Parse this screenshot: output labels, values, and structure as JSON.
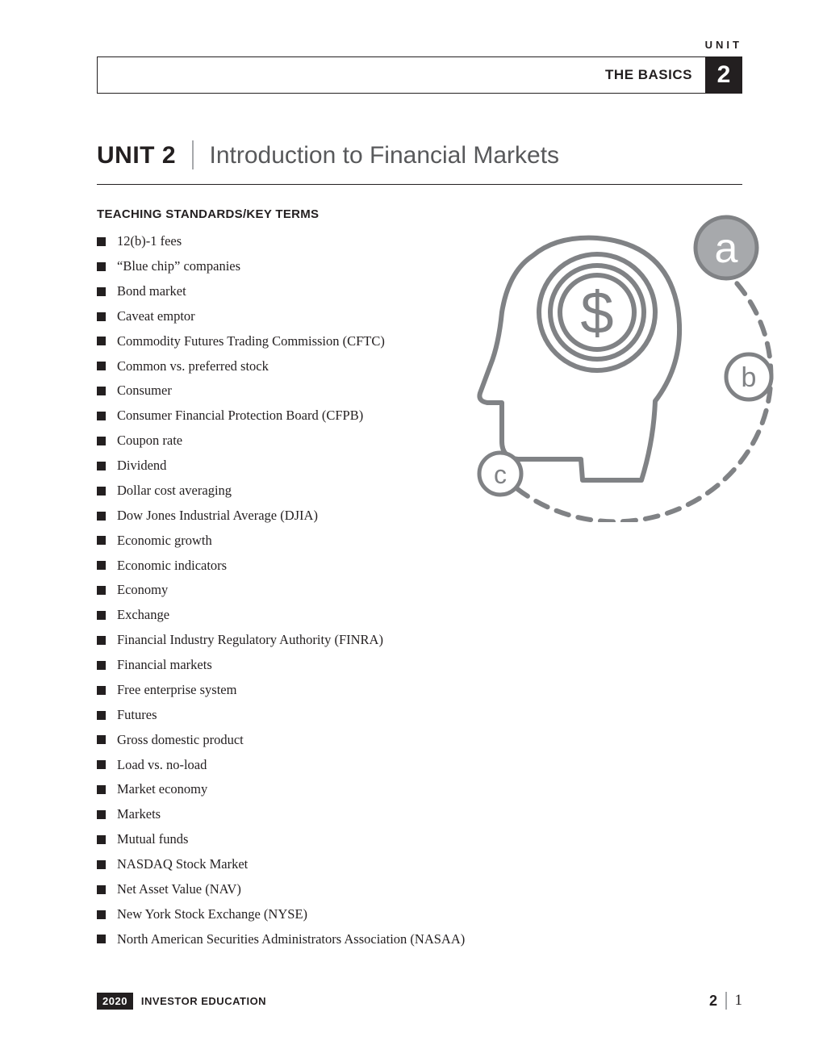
{
  "header": {
    "unit_label_small": "UNIT",
    "category": "THE BASICS",
    "unit_number_badge": "2"
  },
  "title": {
    "unit_prefix": "UNIT 2",
    "text": "Introduction to Financial Markets"
  },
  "section": {
    "heading": "TEACHING STANDARDS/KEY TERMS",
    "terms": [
      "12(b)-1 fees",
      "“Blue chip” companies",
      "Bond market",
      "Caveat emptor",
      "Commodity Futures Trading Commission (CFTC)",
      "Common vs. preferred stock",
      "Consumer",
      "Consumer Financial Protection Board (CFPB)",
      "Coupon rate",
      "Dividend",
      "Dollar cost averaging",
      "Dow Jones Industrial Average (DJIA)",
      "Economic growth",
      "Economic indicators",
      "Economy",
      "Exchange",
      "Financial Industry Regulatory Authority (FINRA)",
      "Financial markets",
      "Free enterprise system",
      "Futures",
      "Gross domestic product",
      "Load vs. no-load",
      "Market economy",
      "Markets",
      "Mutual funds",
      "NASDAQ Stock Market",
      "Net Asset Value (NAV)",
      "New York Stock Exchange (NYSE)",
      "North American Securities Administrators Association (NASAA)"
    ]
  },
  "illustration": {
    "type": "infographic",
    "description": "head-profile-with-dollar-coin-and-orbiting-letter-nodes",
    "stroke_color": "#808285",
    "stroke_width": 5,
    "dash_pattern": "14 10",
    "node_fill_a": "#a7a9ac",
    "node_fill_b": "#ffffff",
    "node_fill_c": "#ffffff",
    "node_stroke": "#808285",
    "letter_color_a": "#ffffff",
    "letter_color_bc": "#808285",
    "letters": {
      "a": "a",
      "b": "b",
      "c": "c"
    },
    "dollar_glyph": "$"
  },
  "footer": {
    "year": "2020",
    "label": "INVESTOR EDUCATION",
    "unit_number": "2",
    "page_number": "1"
  },
  "colors": {
    "text": "#231f20",
    "muted": "#58595b",
    "rule": "#a7a9ac",
    "bg": "#ffffff"
  }
}
